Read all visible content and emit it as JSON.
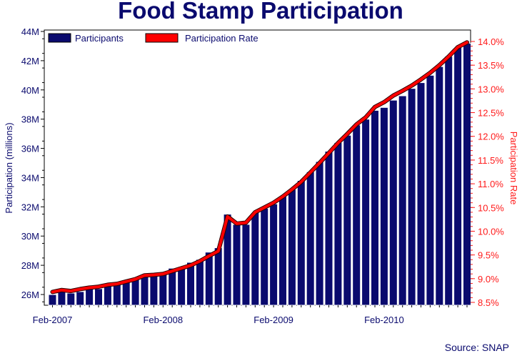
{
  "chart_data": {
    "type": "bar",
    "title": "Food Stamp Participation",
    "xlabel": "",
    "ylabel": "Participation (millions)",
    "y2label": "Participation Rate",
    "source": "Source: SNAP",
    "x_tick_labels": [
      "Feb-2007",
      "Feb-2008",
      "Feb-2009",
      "Feb-2010"
    ],
    "y_ticks": [
      "26M",
      "28M",
      "30M",
      "32M",
      "34M",
      "36M",
      "38M",
      "40M",
      "42M",
      "44M"
    ],
    "y2_ticks": [
      "8.5%",
      "9.0%",
      "9.5%",
      "10.0%",
      "10.5%",
      "11.0%",
      "11.5%",
      "12.0%",
      "12.5%",
      "13.0%",
      "13.5%",
      "14.0%"
    ],
    "ylim": [
      25.2,
      44.0
    ],
    "y2lim": [
      8.5,
      14.0
    ],
    "grid": false,
    "legend_position": "top-left",
    "categories": [
      "Feb-2007",
      "Mar-2007",
      "Apr-2007",
      "May-2007",
      "Jun-2007",
      "Jul-2007",
      "Aug-2007",
      "Sep-2007",
      "Oct-2007",
      "Nov-2007",
      "Dec-2007",
      "Jan-2008",
      "Feb-2008",
      "Mar-2008",
      "Apr-2008",
      "May-2008",
      "Jun-2008",
      "Jul-2008",
      "Aug-2008",
      "Sep-2008",
      "Oct-2008",
      "Nov-2008",
      "Dec-2008",
      "Jan-2009",
      "Feb-2009",
      "Mar-2009",
      "Apr-2009",
      "May-2009",
      "Jun-2009",
      "Jul-2009",
      "Aug-2009",
      "Sep-2009",
      "Oct-2009",
      "Nov-2009",
      "Dec-2009",
      "Jan-2010",
      "Feb-2010",
      "Mar-2010",
      "Apr-2010",
      "May-2010",
      "Jun-2010",
      "Jul-2010",
      "Aug-2010",
      "Sep-2010",
      "Oct-2010",
      "Nov-2010"
    ],
    "series": [
      {
        "name": "Participants",
        "color": "#0a0a6e",
        "axis": "left",
        "values": [
          26.0,
          26.2,
          26.1,
          26.2,
          26.4,
          26.4,
          26.7,
          26.7,
          26.9,
          27.1,
          27.4,
          27.4,
          27.4,
          27.8,
          27.9,
          28.2,
          28.4,
          28.9,
          29.2,
          31.5,
          30.8,
          30.8,
          31.6,
          31.9,
          32.2,
          32.7,
          33.2,
          33.8,
          34.4,
          35.1,
          35.8,
          36.4,
          36.9,
          37.6,
          38.0,
          38.6,
          38.8,
          39.3,
          39.6,
          40.1,
          40.5,
          41.0,
          41.6,
          42.3,
          42.9,
          43.2
        ]
      },
      {
        "name": "Participation Rate",
        "color": "#ff0000",
        "axis": "right",
        "values": [
          8.72,
          8.76,
          8.74,
          8.78,
          8.81,
          8.83,
          8.87,
          8.89,
          8.94,
          8.99,
          9.07,
          9.08,
          9.1,
          9.16,
          9.22,
          9.28,
          9.37,
          9.48,
          9.58,
          10.31,
          10.16,
          10.18,
          10.4,
          10.5,
          10.6,
          10.73,
          10.88,
          11.04,
          11.24,
          11.44,
          11.65,
          11.86,
          12.05,
          12.25,
          12.4,
          12.62,
          12.72,
          12.86,
          12.96,
          13.07,
          13.2,
          13.34,
          13.5,
          13.68,
          13.88,
          13.98
        ]
      }
    ]
  }
}
